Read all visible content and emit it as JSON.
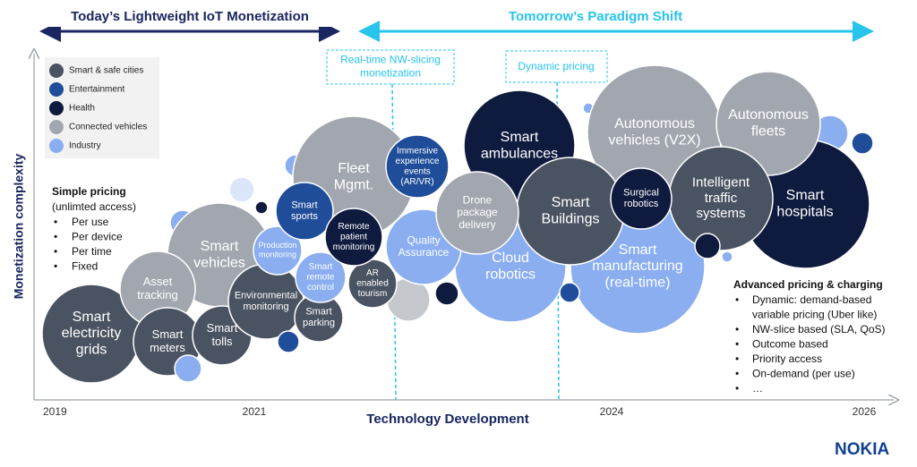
{
  "banner": {
    "left": "Today’s Lightweight IoT Monetization",
    "right": "Tomorrow’s Paradigm Shift"
  },
  "callouts": [
    [
      "Real-time NW-slicing",
      "monetization"
    ],
    [
      "Dynamic pricing"
    ]
  ],
  "legend": [
    {
      "label": "Smart & safe cities",
      "color": "#4a5361"
    },
    {
      "label": "Entertainment",
      "color": "#1f4d99"
    },
    {
      "label": "Health",
      "color": "#0f1b3e"
    },
    {
      "label": "Connected vehicles",
      "color": "#a2a7af"
    },
    {
      "label": "Industry",
      "color": "#8aaef0"
    }
  ],
  "y_axis_label": "Monetization complexity",
  "x_axis_label": "Technology Development",
  "years": [
    "2019",
    "2021",
    "2024",
    "2026"
  ],
  "simple_pricing": {
    "title": "Simple pricing",
    "subtitle": "(unlimted access)",
    "items": [
      "Per use",
      "Per device",
      "Per time",
      "Fixed"
    ]
  },
  "advanced_pricing": {
    "title": "Advanced pricing & charging",
    "items": [
      [
        "Dynamic: demand-based",
        "variable pricing (Uber like)"
      ],
      [
        "NW-slice based (SLA, QoS)"
      ],
      [
        "Outcome based"
      ],
      [
        "Priority access"
      ],
      [
        "On-demand (per use)"
      ],
      [
        "…"
      ]
    ]
  },
  "bubbles": [
    {
      "lines": [
        "Autonomous",
        "vehicles (V2X)"
      ],
      "color": "#a2a7af"
    },
    {
      "lines": [
        "Smart",
        "hospitals"
      ],
      "color": "#0f1b3e"
    },
    {
      "lines": [
        "Autonomous",
        "fleets"
      ],
      "color": "#a2a7af"
    },
    {
      "lines": [
        "Fleet",
        "Mgmt."
      ],
      "color": "#a2a7af"
    },
    {
      "lines": [
        "Smart",
        "ambulances"
      ],
      "color": "#0f1b3e"
    },
    {
      "lines": [
        "Smart",
        "manufacturing",
        "(real-time)"
      ],
      "color": "#8aaef0"
    },
    {
      "lines": [
        "Cloud",
        "robotics"
      ],
      "color": "#8aaef0"
    },
    {
      "lines": [
        "Smart",
        "Buildings"
      ],
      "color": "#4a5361"
    },
    {
      "lines": [
        "Intelligent",
        "traffic",
        "systems"
      ],
      "color": "#4a5361"
    },
    {
      "lines": [
        "Surgical",
        "robotics"
      ],
      "color": "#0f1b3e"
    },
    {
      "lines": [
        "Smart",
        "vehicles"
      ],
      "color": "#a2a7af"
    },
    {
      "lines": [
        "Smart",
        "electricity",
        "grids"
      ],
      "color": "#4a5361"
    },
    {
      "lines": [
        "Asset",
        "tracking"
      ],
      "color": "#a2a7af"
    },
    {
      "lines": [
        "Smart",
        "meters"
      ],
      "color": "#4a5361"
    },
    {
      "lines": [
        "Smart",
        "tolls"
      ],
      "color": "#4a5361"
    },
    {
      "lines": [
        "Environmental",
        "monitoring"
      ],
      "color": "#4a5361"
    },
    {
      "lines": [
        "Production",
        "monitoring"
      ],
      "color": "#8aaef0"
    },
    {
      "lines": [
        "Smart",
        "sports"
      ],
      "color": "#1f4d99"
    },
    {
      "lines": [
        "Smart",
        "parking"
      ],
      "color": "#4a5361"
    },
    {
      "lines": [
        "Smart",
        "remote",
        "control"
      ],
      "color": "#8aaef0"
    },
    {
      "lines": [
        "AR",
        "enabled",
        "tourism"
      ],
      "color": "#4a5361"
    },
    {
      "lines": [
        "Remote",
        "patient",
        "monitoring"
      ],
      "color": "#0f1b3e"
    },
    {
      "lines": [
        "Quality",
        "Assurance"
      ],
      "color": "#8aaef0"
    },
    {
      "lines": [
        "Drone",
        "package",
        "delivery"
      ],
      "color": "#a2a7af"
    },
    {
      "lines": [
        "Immersive",
        "experience",
        "events",
        "(AR/VR)"
      ],
      "color": "#1f4d99"
    }
  ],
  "logo": "NOKIA"
}
